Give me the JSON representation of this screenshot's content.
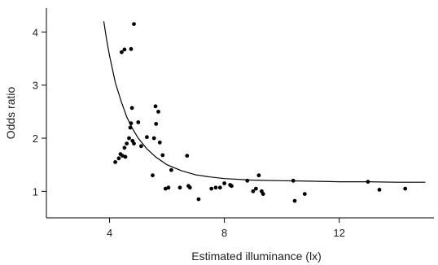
{
  "chart_data": {
    "type": "scatter",
    "xlabel": "Estimated illuminance (lx)",
    "ylabel": "Odds ratio",
    "xlim": [
      1.8,
      15.3
    ],
    "ylim": [
      0.5,
      4.45
    ],
    "xticks": [
      4,
      8,
      12
    ],
    "yticks": [
      1,
      2,
      3,
      4
    ],
    "grid": false,
    "legend": "none",
    "series": [
      {
        "type": "scatter",
        "points": [
          [
            4.2,
            1.55
          ],
          [
            4.32,
            1.62
          ],
          [
            4.38,
            1.7
          ],
          [
            4.45,
            1.67
          ],
          [
            4.52,
            1.82
          ],
          [
            4.55,
            1.65
          ],
          [
            4.6,
            1.9
          ],
          [
            4.68,
            2.0
          ],
          [
            4.72,
            2.2
          ],
          [
            4.75,
            2.28
          ],
          [
            4.78,
            2.57
          ],
          [
            4.8,
            1.95
          ],
          [
            4.85,
            1.9
          ],
          [
            5.0,
            2.3
          ],
          [
            5.1,
            1.85
          ],
          [
            4.42,
            3.62
          ],
          [
            4.52,
            3.67
          ],
          [
            4.75,
            3.68
          ],
          [
            4.85,
            4.15
          ],
          [
            5.3,
            2.02
          ],
          [
            5.5,
            1.3
          ],
          [
            5.55,
            2.0
          ],
          [
            5.6,
            2.6
          ],
          [
            5.62,
            2.27
          ],
          [
            5.7,
            2.5
          ],
          [
            5.75,
            1.92
          ],
          [
            5.85,
            1.68
          ],
          [
            5.95,
            1.05
          ],
          [
            6.05,
            1.07
          ],
          [
            6.15,
            1.4
          ],
          [
            6.45,
            1.07
          ],
          [
            6.7,
            1.67
          ],
          [
            6.75,
            1.1
          ],
          [
            6.8,
            1.07
          ],
          [
            7.1,
            0.85
          ],
          [
            7.55,
            1.05
          ],
          [
            7.7,
            1.07
          ],
          [
            7.85,
            1.07
          ],
          [
            8.0,
            1.15
          ],
          [
            8.2,
            1.12
          ],
          [
            8.25,
            1.1
          ],
          [
            8.8,
            1.2
          ],
          [
            9.0,
            1.0
          ],
          [
            9.1,
            1.05
          ],
          [
            9.2,
            1.3
          ],
          [
            9.3,
            1.0
          ],
          [
            9.35,
            0.95
          ],
          [
            10.4,
            1.2
          ],
          [
            10.45,
            0.82
          ],
          [
            10.8,
            0.95
          ],
          [
            13.0,
            1.18
          ],
          [
            13.4,
            1.03
          ],
          [
            14.3,
            1.05
          ]
        ]
      },
      {
        "type": "line",
        "points": [
          [
            3.8,
            4.2
          ],
          [
            3.9,
            3.85
          ],
          [
            4.0,
            3.55
          ],
          [
            4.2,
            3.05
          ],
          [
            4.4,
            2.7
          ],
          [
            4.6,
            2.4
          ],
          [
            4.8,
            2.18
          ],
          [
            5.0,
            2.0
          ],
          [
            5.3,
            1.8
          ],
          [
            5.6,
            1.65
          ],
          [
            6.0,
            1.5
          ],
          [
            6.5,
            1.39
          ],
          [
            7.0,
            1.31
          ],
          [
            7.5,
            1.27
          ],
          [
            8.0,
            1.24
          ],
          [
            9.0,
            1.21
          ],
          [
            10.0,
            1.2
          ],
          [
            11.0,
            1.19
          ],
          [
            12.0,
            1.18
          ],
          [
            13.0,
            1.18
          ],
          [
            14.0,
            1.17
          ],
          [
            15.0,
            1.17
          ]
        ]
      }
    ]
  }
}
